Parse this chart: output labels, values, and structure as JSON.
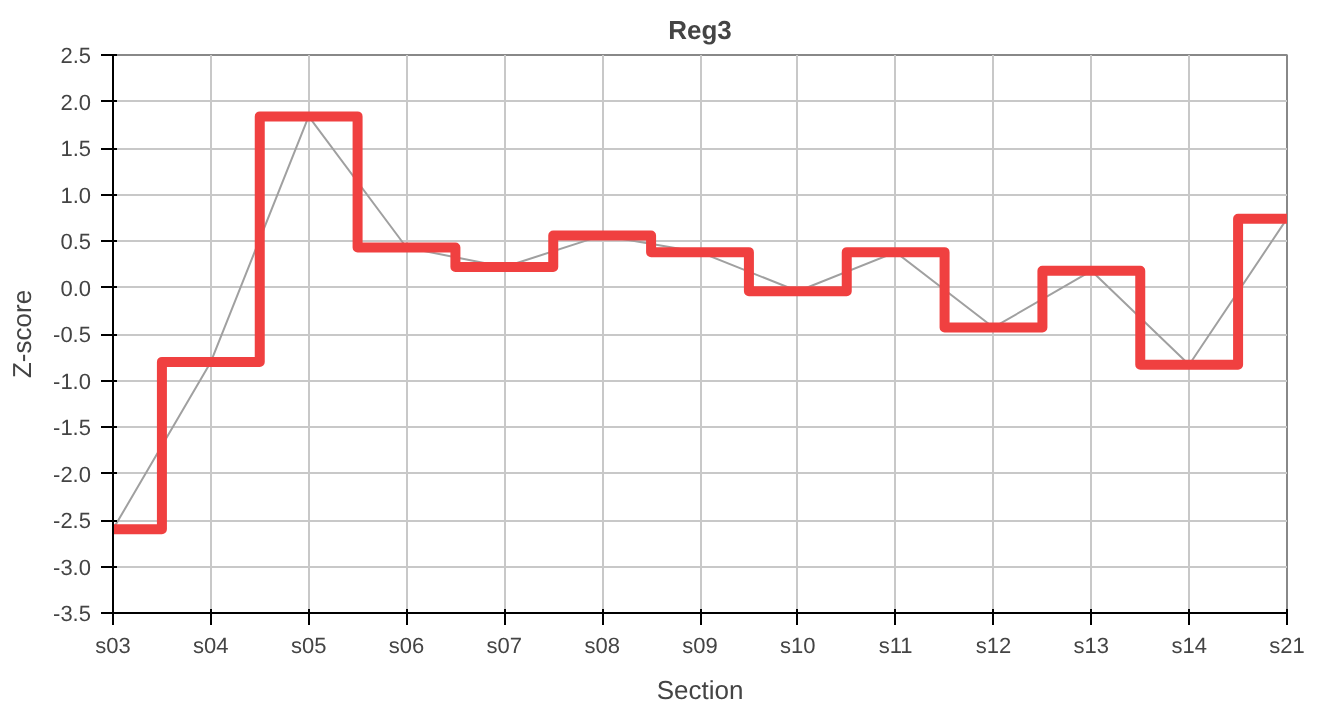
{
  "chart_data": {
    "type": "line",
    "title": "Reg3",
    "xlabel": "Section",
    "ylabel": "Z-score",
    "categories": [
      "s03",
      "s04",
      "s05",
      "s06",
      "s07",
      "s08",
      "s09",
      "s10",
      "s11",
      "s12",
      "s13",
      "s14",
      "s21"
    ],
    "ylim": [
      -3.5,
      2.5
    ],
    "yticks": [
      {
        "value": -3.5,
        "label": "-3.5"
      },
      {
        "value": -3,
        "label": "-3.0"
      },
      {
        "value": -2.5,
        "label": "-2.5"
      },
      {
        "value": -2,
        "label": "-2.0"
      },
      {
        "value": -1.5,
        "label": "-1.5"
      },
      {
        "value": -1,
        "label": "-1.0"
      },
      {
        "value": -0.5,
        "label": "-0.5"
      },
      {
        "value": 0,
        "label": "0.0"
      },
      {
        "value": 0.5,
        "label": "0.5"
      },
      {
        "value": 1,
        "label": "1.0"
      },
      {
        "value": 1.5,
        "label": "1.5"
      },
      {
        "value": 2,
        "label": "2.0"
      },
      {
        "value": 2.5,
        "label": "2.5"
      }
    ],
    "grid": true,
    "series": [
      {
        "color": "#a0a0a0",
        "values": [
          -2.6,
          -0.8,
          1.84,
          0.43,
          0.22,
          0.56,
          0.38,
          -0.04,
          0.38,
          -0.43,
          0.18,
          -0.83,
          0.74
        ]
      },
      {
        "type": "step",
        "color": "#f04040",
        "values": [
          -2.6,
          -0.8,
          1.84,
          0.43,
          0.22,
          0.56,
          0.38,
          -0.04,
          0.38,
          -0.43,
          0.18,
          -0.83,
          0.74
        ]
      }
    ]
  }
}
